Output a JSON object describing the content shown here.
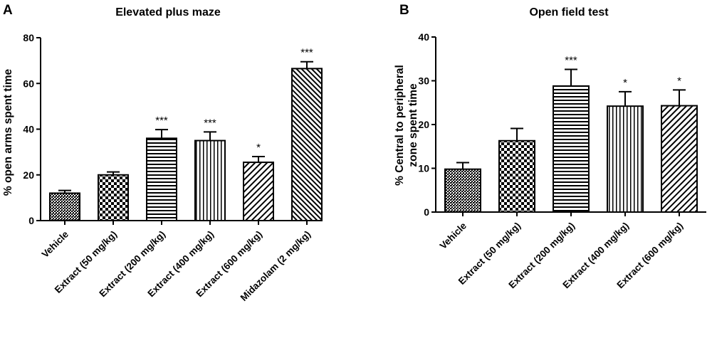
{
  "chart_data": [
    {
      "type": "bar",
      "panel": "A",
      "title": "Elevated plus maze",
      "xlabel": "",
      "ylabel": "% open arms spent time",
      "ylim": [
        0,
        80
      ],
      "yticks": [
        0,
        20,
        40,
        60,
        80
      ],
      "categories": [
        "Vehicle",
        "Extract (50 mg/kg)",
        "Extract (200 mg/kg)",
        "Extract (400 mg/kg)",
        "Extract (600 mg/kg)",
        "Midazolam (2 mg/kg)"
      ],
      "values": [
        12,
        20,
        36,
        35,
        25.5,
        66.5
      ],
      "errors": [
        1.2,
        1.3,
        3.8,
        3.8,
        2.5,
        3
      ],
      "significance": [
        "",
        "",
        "***",
        "***",
        "*",
        "***"
      ],
      "patterns": [
        "dense-dots",
        "checker",
        "horizontal-lines",
        "vertical-lines",
        "diagonal-lines",
        "diagonal-dense"
      ],
      "grid": false
    },
    {
      "type": "bar",
      "panel": "B",
      "title": "Open field test",
      "xlabel": "",
      "ylabel": [
        "% Central to peripheral",
        "zone spent time"
      ],
      "ylim": [
        0,
        40
      ],
      "yticks": [
        0,
        10,
        20,
        30,
        40
      ],
      "categories": [
        "Vehicle",
        "Extract (50 mg/kg)",
        "Extract (200 mg/kg)",
        "Extract (400 mg/kg)",
        "Extract (600 mg/kg)"
      ],
      "values": [
        9.8,
        16.3,
        28.8,
        24.2,
        24.3
      ],
      "errors": [
        1.5,
        2.8,
        3.8,
        3.3,
        3.6
      ],
      "significance": [
        "",
        "",
        "***",
        "*",
        "*"
      ],
      "patterns": [
        "dense-dots",
        "checker",
        "horizontal-lines",
        "vertical-lines",
        "diagonal-lines"
      ],
      "grid": false
    }
  ]
}
